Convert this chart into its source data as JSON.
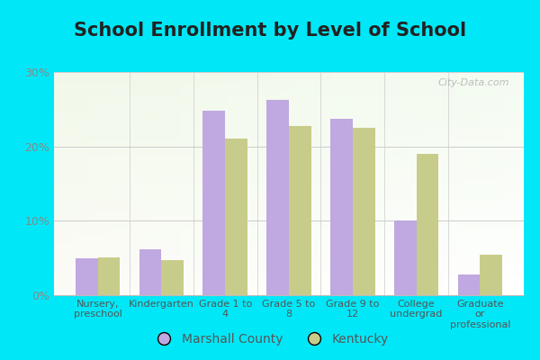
{
  "title": "School Enrollment by Level of School",
  "categories": [
    "Nursery,\npreschool",
    "Kindergarten",
    "Grade 1 to\n4",
    "Grade 5 to\n8",
    "Grade 9 to\n12",
    "College\nundergrad",
    "Graduate\nor\nprofessional"
  ],
  "marshall_county": [
    5.0,
    6.2,
    24.8,
    26.3,
    23.7,
    10.0,
    2.8
  ],
  "kentucky": [
    5.1,
    4.7,
    21.0,
    22.8,
    22.5,
    19.0,
    5.5
  ],
  "marshall_color": "#c0a8e0",
  "kentucky_color": "#c8cc8a",
  "bar_width": 0.35,
  "ylim": [
    0,
    30
  ],
  "yticks": [
    0,
    10,
    20,
    30
  ],
  "ytick_labels": [
    "0%",
    "10%",
    "20%",
    "30%"
  ],
  "background_outer": "#00e8f8",
  "title_fontsize": 15,
  "title_color": "#222222",
  "legend_labels": [
    "Marshall County",
    "Kentucky"
  ],
  "watermark": "City-Data.com",
  "tick_color": "#888888",
  "label_color": "#555555"
}
